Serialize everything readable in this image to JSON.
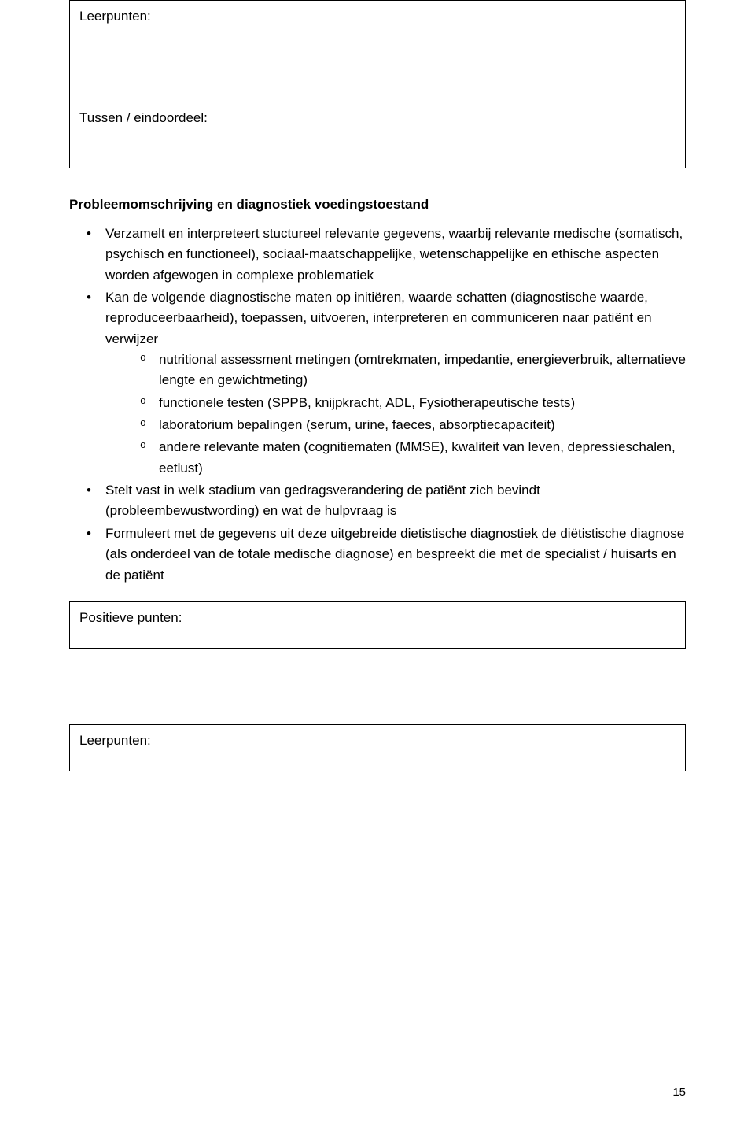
{
  "document": {
    "text_color": "#000000",
    "background_color": "#ffffff",
    "border_color": "#000000",
    "body_fontsize": 17,
    "page_number": "15"
  },
  "box_top": {
    "label": "Leerpunten:"
  },
  "box_mid": {
    "label": "Tussen / eindoordeel:"
  },
  "section": {
    "heading": "Probleemomschrijving en diagnostiek voedingstoestand",
    "bullets": [
      "Verzamelt en interpreteert stuctureel relevante gegevens, waarbij relevante medische (somatisch, psychisch en functioneel), sociaal-maatschappelijke, wetenschappelijke en ethische aspecten worden afgewogen in complexe problematiek",
      "Kan de volgende diagnostische maten op initiëren, waarde schatten (diagnostische waarde, reproduceerbaarheid), toepassen, uitvoeren, interpreteren en communiceren naar patiënt en verwijzer",
      "Stelt vast in welk stadium van gedragsverandering de patiënt zich bevindt (probleembewustwording) en wat de hulpvraag is",
      "Formuleert met de gegevens uit deze uitgebreide dietistische diagnostiek de diëtistische diagnose (als onderdeel van de totale medische diagnose) en bespreekt die met de specialist / huisarts en de patiënt"
    ],
    "sub_circle": [
      "nutritional assessment metingen (omtrekmaten, impedantie, energieverbruik, alternatieve lengte en gewichtmeting)",
      "functionele testen (SPPB, knijpkracht, ADL, Fysiotherapeutische tests)",
      "laboratorium bepalingen (serum, urine, faeces, absorptiecapaciteit)",
      "andere relevante maten (cognitiematen (MMSE), kwaliteit van leven, depressieschalen, eetlust)"
    ]
  },
  "box_positive": {
    "label": "Positieve punten:"
  },
  "box_leer_bottom": {
    "label": "Leerpunten:"
  }
}
